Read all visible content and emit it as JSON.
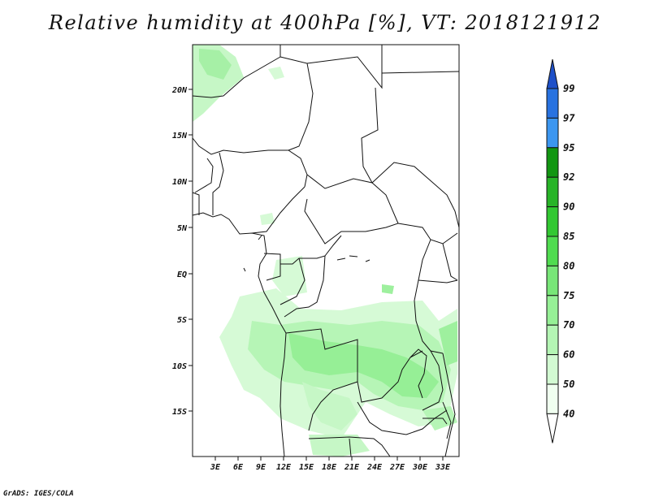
{
  "title": "Relative humidity at 400hPa [%], VT: 2018121912",
  "credit": "GrADS: IGES/COLA",
  "map": {
    "lat_labels": [
      "20N",
      "15N",
      "10N",
      "5N",
      "EQ",
      "5S",
      "10S",
      "15S"
    ],
    "lon_labels": [
      "3E",
      "6E",
      "9E",
      "12E",
      "15E",
      "18E",
      "21E",
      "24E",
      "27E",
      "30E",
      "33E"
    ]
  },
  "colorbar": {
    "labels": [
      "99",
      "97",
      "95",
      "92",
      "90",
      "85",
      "80",
      "75",
      "70",
      "60",
      "50",
      "40"
    ],
    "colors": [
      "#1e50c8",
      "#2872e0",
      "#3c96f0",
      "#129612",
      "#28b428",
      "#32c832",
      "#50dc50",
      "#78e678",
      "#96f096",
      "#b4f5b4",
      "#d2fad2",
      "#f0fff0"
    ],
    "colors_meaning": "bins from top (above 99) to bottom; white = below 40"
  }
}
